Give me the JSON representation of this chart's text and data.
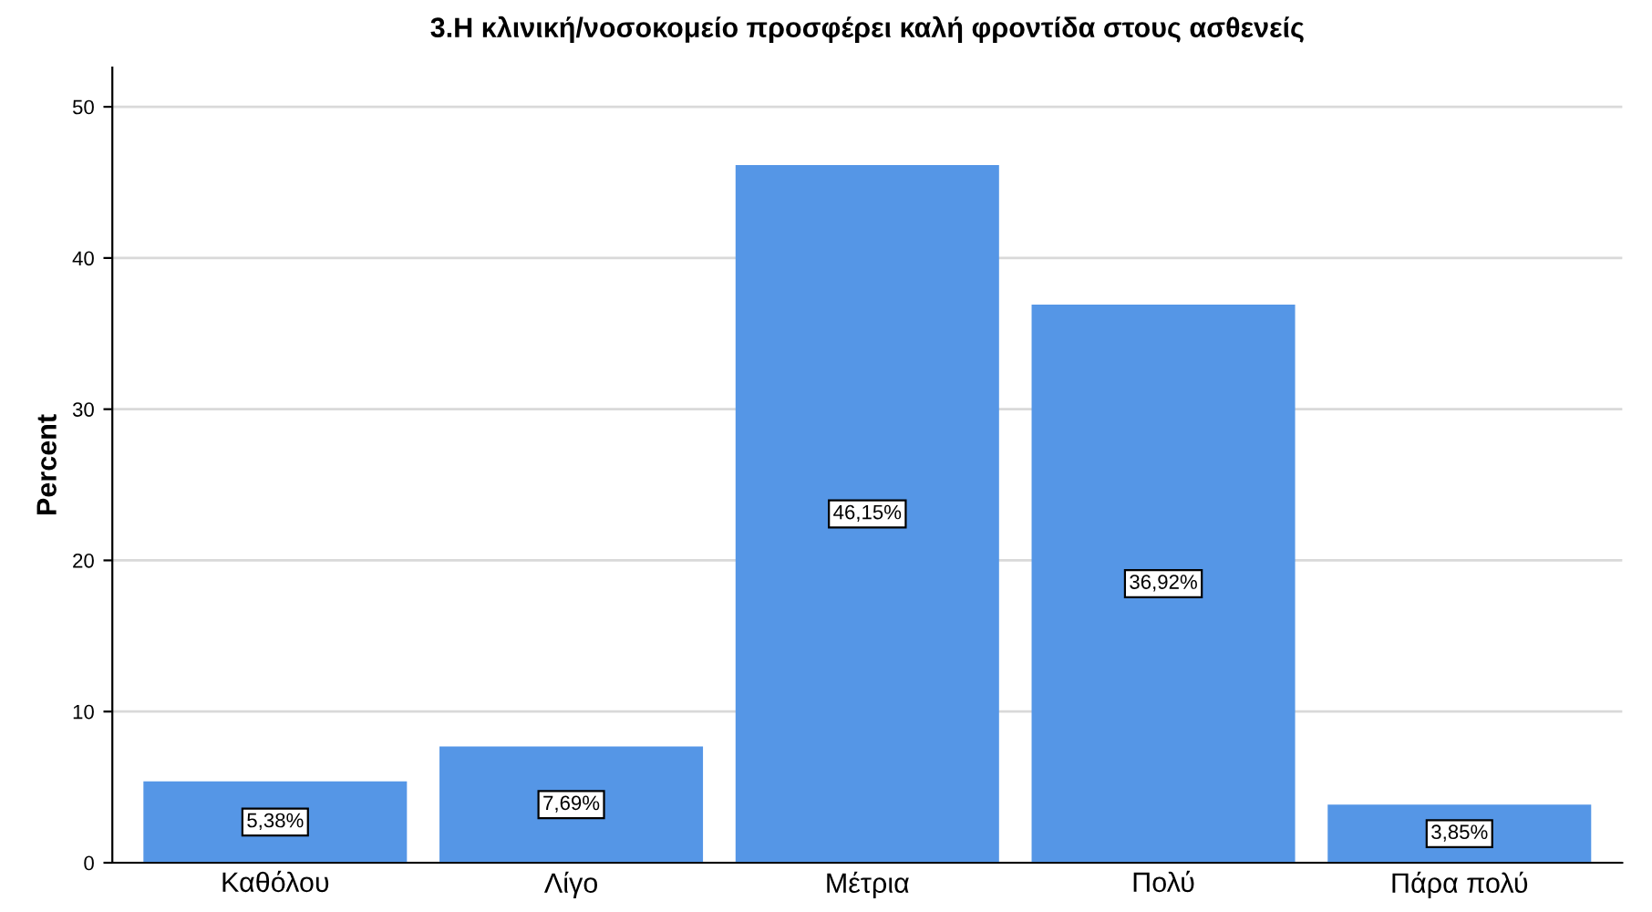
{
  "chart_data": {
    "type": "bar",
    "title": "3.Η κλινική/νοσοκομείο προσφέρει καλή φροντίδα στους ασθενείς",
    "ylabel": "Percent",
    "categories": [
      "Καθόλου",
      "Λίγο",
      "Μέτρια",
      "Πολύ",
      "Πάρα πολύ"
    ],
    "values": [
      5.38,
      7.69,
      46.15,
      36.92,
      3.85
    ],
    "color": "#5596e6",
    "value_labels": [
      "5,38%",
      "7,69%",
      "46,15%",
      "36,92%",
      "3,85%"
    ],
    "ylim": [
      0,
      52.6
    ],
    "yticks": [
      0,
      10,
      20,
      30,
      40,
      50
    ],
    "grid": "y"
  }
}
